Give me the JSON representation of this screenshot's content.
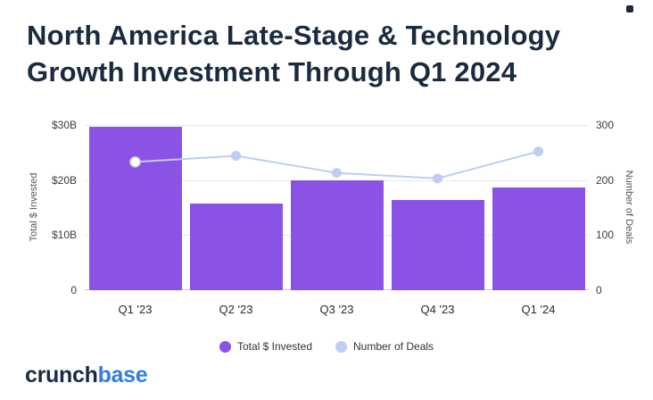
{
  "title": {
    "line1": "North America Late-Stage & Technology",
    "line2": "Growth Investment Through Q1 2024"
  },
  "chart_data": {
    "type": "bar",
    "title": "North America Late-Stage & Technology Growth Investment Through Q1 2024",
    "categories": [
      "Q1 '23",
      "Q2 '23",
      "Q3 '23",
      "Q4 '23",
      "Q1 '24"
    ],
    "series": [
      {
        "name": "Total $ Invested",
        "type": "bar",
        "axis": "left",
        "color": "#8a52e5",
        "values": [
          29.7,
          15.8,
          19.9,
          16.3,
          18.7
        ]
      },
      {
        "name": "Number of Deals",
        "type": "line",
        "axis": "right",
        "color": "#bfcdf3",
        "values": [
          233,
          244,
          213,
          203,
          252
        ],
        "highlight_point": 0
      }
    ],
    "left_axis": {
      "label": "Total $ Invested",
      "max": 30,
      "tick_values": [
        30,
        20,
        10,
        0
      ],
      "ticks": [
        "$30B",
        "$20B",
        "$10B",
        "0"
      ]
    },
    "right_axis": {
      "label": "Number of Deals",
      "max": 300,
      "tick_values": [
        300,
        200,
        100,
        0
      ],
      "ticks": [
        "300",
        "200",
        "100",
        "0"
      ]
    },
    "grid": "horizontal",
    "legend_position": "bottom"
  },
  "legend": {
    "items": [
      {
        "label": "Total $ Invested",
        "color": "#8a52e5"
      },
      {
        "label": "Number of Deals",
        "color": "#bfcdf3"
      }
    ]
  },
  "logo": {
    "text": "crunchbase",
    "part1": "crunch",
    "part2": "base",
    "color1": "#1b2a4a",
    "color2": "#2e7de4"
  }
}
